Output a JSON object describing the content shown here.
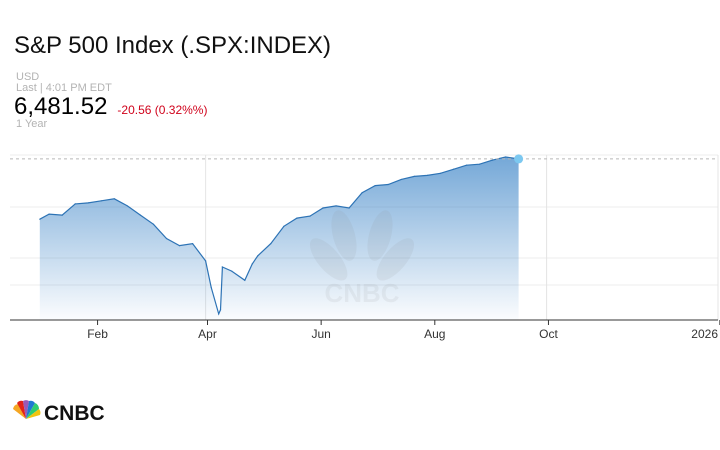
{
  "header": {
    "title": "S&P 500 Index (.SPX:INDEX)",
    "currency": "USD",
    "last": "Last | 4:01 PM EDT",
    "price": "6,481.52",
    "change": "-20.56 (0.32%%)",
    "period": "1 Year"
  },
  "brand": {
    "logo_text": "CNBC",
    "watermark_text": "CNBC"
  },
  "colors": {
    "area": "#3f86c8",
    "line": "#2d73b5",
    "change_negative": "#d0021b",
    "last_point": "#7cc8f0"
  },
  "chart_data": {
    "type": "area",
    "title": "",
    "xlabel": "",
    "ylabel": "",
    "x_ticks": [
      "Feb",
      "Apr",
      "Jun",
      "Aug",
      "Oct",
      "2026"
    ],
    "grid": true,
    "x": [
      "2025-01-01",
      "2025-01-06",
      "2025-01-13",
      "2025-01-20",
      "2025-01-27",
      "2025-02-03",
      "2025-02-10",
      "2025-02-17",
      "2025-02-24",
      "2025-03-03",
      "2025-03-10",
      "2025-03-17",
      "2025-03-24",
      "2025-03-31",
      "2025-04-03",
      "2025-04-07",
      "2025-04-08",
      "2025-04-09",
      "2025-04-14",
      "2025-04-21",
      "2025-04-25",
      "2025-04-28",
      "2025-05-05",
      "2025-05-12",
      "2025-05-19",
      "2025-05-26",
      "2025-06-02",
      "2025-06-09",
      "2025-06-16",
      "2025-06-23",
      "2025-06-30",
      "2025-07-07",
      "2025-07-14",
      "2025-07-21",
      "2025-07-28",
      "2025-08-04",
      "2025-08-11",
      "2025-08-18",
      "2025-08-25",
      "2025-09-01",
      "2025-09-08",
      "2025-09-15"
    ],
    "y": [
      5890,
      5940,
      5930,
      6040,
      6050,
      6070,
      6090,
      6020,
      5930,
      5840,
      5700,
      5630,
      5650,
      5480,
      5220,
      4960,
      5000,
      5420,
      5380,
      5290,
      5450,
      5530,
      5650,
      5820,
      5900,
      5920,
      6000,
      6020,
      6000,
      6150,
      6220,
      6230,
      6280,
      6310,
      6320,
      6340,
      6380,
      6420,
      6430,
      6470,
      6500,
      6481.52
    ],
    "last_value": 6481.52
  }
}
